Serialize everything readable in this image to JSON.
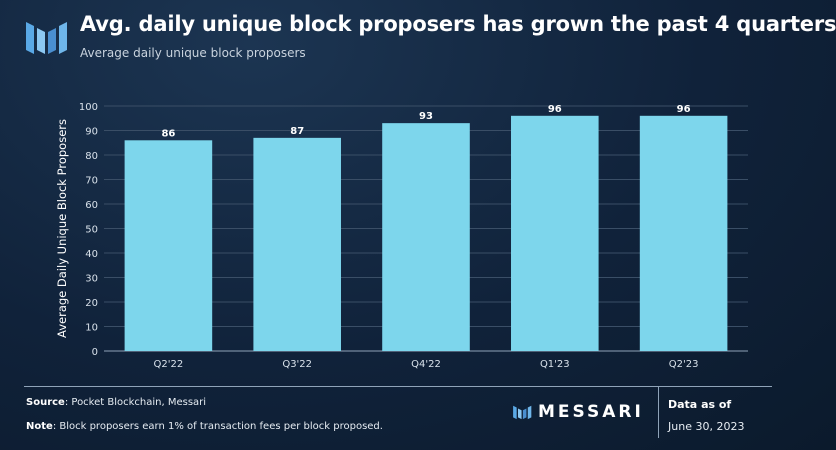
{
  "header": {
    "title": "Avg. daily unique block proposers has grown the past 4 quarters",
    "subtitle": "Average daily unique block proposers"
  },
  "colors": {
    "bar": "#7dd6ec",
    "grid": "#3a4e66",
    "axis_text": "#d8e1ea",
    "logo": "#5aa9e6"
  },
  "chart_data": {
    "type": "bar",
    "categories": [
      "Q2'22",
      "Q3'22",
      "Q4'22",
      "Q1'23",
      "Q2'23"
    ],
    "values": [
      86,
      87,
      93,
      96,
      96
    ],
    "title": "Average daily unique block proposers",
    "xlabel": "",
    "ylabel": "Average Daily Unique Block Proposers",
    "ylim": [
      0,
      100
    ],
    "yticks": [
      0,
      10,
      20,
      30,
      40,
      50,
      60,
      70,
      80,
      90,
      100
    ],
    "grid": true
  },
  "footer": {
    "source_label": "Source",
    "source_text": ": Pocket Blockchain, Messari",
    "note_label": "Note",
    "note_text": ": Block proposers earn 1% of transaction fees per block proposed.",
    "brand": "MESSARI",
    "data_as_of_label": "Data as of",
    "data_date": "June 30, 2023"
  }
}
